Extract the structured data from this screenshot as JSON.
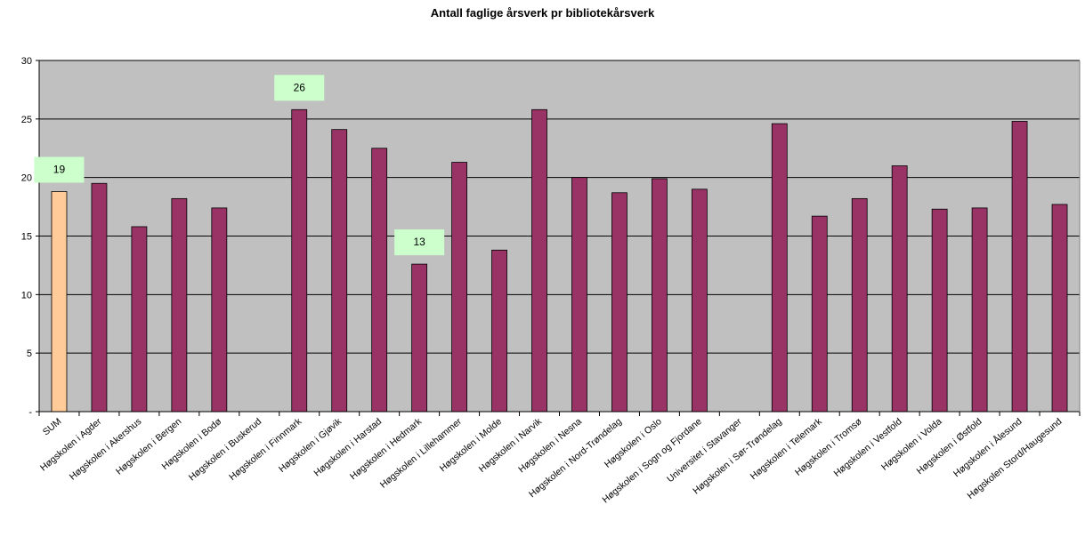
{
  "chart_data": {
    "type": "bar",
    "title": "Antall faglige årsverk pr bibliotekårsverk",
    "xlabel": "",
    "ylabel": "",
    "ylim": [
      0,
      30
    ],
    "yticks": [
      0,
      5,
      10,
      15,
      20,
      25,
      30
    ],
    "ytick_labels": [
      "-",
      "5",
      "10",
      "15",
      "20",
      "25",
      "30"
    ],
    "grid": true,
    "legend": "none",
    "categories": [
      "SUM",
      "Høgskolen i Agder",
      "Høgskolen i Akershus",
      "Høgskolen i Bergen",
      "Høgskolen i Bodø",
      "Høgskolen i Buskerud",
      "Høgskolen i Finnmark",
      "Høgskolen i Gjøvik",
      "Høgskolen i Harstad",
      "Høgskolen i Hedmark",
      "Høgskolen i Lillehammer",
      "Høgskolen i Molde",
      "Høgskolen i Narvik",
      "Høgskolen i Nesna",
      "Høgskolen i Nord-Trøndelag",
      "Høgskolen i Oslo",
      "Høgskolen i Sogn og Fjordane",
      "Universitet i Stavanger",
      "Høgskolen i Sør-Trøndelag",
      "Høgskolen i Telemark",
      "Høgskolen i Tromsø",
      "Høgskolen i Vestfold",
      "Høgskolen i Volda",
      "Høgskolen i Østfold",
      "Høgskolen i Ålesund",
      "Høgskolen Stord/Haugesund"
    ],
    "values": [
      18.8,
      19.5,
      15.8,
      18.2,
      17.4,
      null,
      25.8,
      24.1,
      22.5,
      12.6,
      21.3,
      13.8,
      25.8,
      20.0,
      18.7,
      19.9,
      19.0,
      null,
      24.6,
      16.7,
      18.2,
      21.0,
      17.3,
      17.4,
      24.8,
      17.7
    ],
    "highlight_index": 0,
    "callouts": [
      {
        "category_index": 0,
        "text": "19"
      },
      {
        "category_index": 6,
        "text": "26"
      },
      {
        "category_index": 9,
        "text": "13"
      }
    ],
    "colors": {
      "bar": "#993366",
      "highlight_bar": "#FFCC99",
      "plot_bg": "#C0C0C0",
      "gridline": "#000000",
      "callout_bg": "#CCFFCC"
    }
  }
}
